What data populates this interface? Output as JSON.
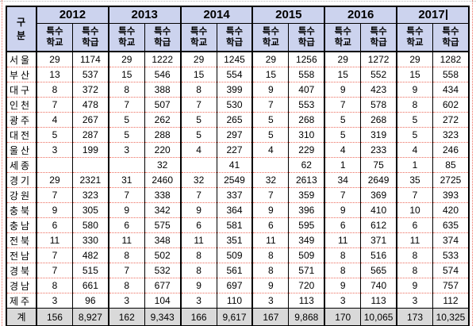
{
  "table": {
    "corner_label": "구분",
    "years": [
      "2012",
      "2013",
      "2014",
      "2015",
      "2016",
      "2017"
    ],
    "col_school": "특수학교",
    "col_class": "특수학급",
    "rows": [
      {
        "region": "서울",
        "values": [
          "29",
          "1174",
          "29",
          "1222",
          "29",
          "1245",
          "29",
          "1256",
          "29",
          "1272",
          "29",
          "1282"
        ]
      },
      {
        "region": "부산",
        "values": [
          "13",
          "537",
          "15",
          "546",
          "15",
          "554",
          "15",
          "558",
          "15",
          "552",
          "15",
          "558"
        ]
      },
      {
        "region": "대구",
        "values": [
          "8",
          "372",
          "8",
          "388",
          "8",
          "399",
          "9",
          "407",
          "9",
          "423",
          "9",
          "434"
        ]
      },
      {
        "region": "인천",
        "values": [
          "7",
          "478",
          "7",
          "507",
          "7",
          "530",
          "7",
          "553",
          "7",
          "578",
          "8",
          "602"
        ]
      },
      {
        "region": "광주",
        "values": [
          "4",
          "267",
          "5",
          "262",
          "5",
          "265",
          "5",
          "268",
          "5",
          "268",
          "5",
          "272"
        ]
      },
      {
        "region": "대전",
        "values": [
          "5",
          "287",
          "5",
          "288",
          "5",
          "297",
          "5",
          "310",
          "5",
          "319",
          "5",
          "323"
        ]
      },
      {
        "region": "울산",
        "values": [
          "3",
          "199",
          "3",
          "220",
          "4",
          "227",
          "4",
          "229",
          "4",
          "233",
          "4",
          "246"
        ]
      },
      {
        "region": "세종",
        "values": [
          "",
          "",
          "",
          "32",
          "",
          "41",
          "",
          "62",
          "1",
          "75",
          "1",
          "85"
        ]
      },
      {
        "region": "경기",
        "values": [
          "29",
          "2321",
          "31",
          "2460",
          "32",
          "2549",
          "32",
          "2613",
          "34",
          "2649",
          "35",
          "2725"
        ]
      },
      {
        "region": "강원",
        "values": [
          "7",
          "323",
          "7",
          "338",
          "7",
          "337",
          "7",
          "359",
          "7",
          "369",
          "7",
          "393"
        ]
      },
      {
        "region": "충북",
        "values": [
          "9",
          "305",
          "9",
          "342",
          "9",
          "364",
          "9",
          "396",
          "9",
          "410",
          "10",
          "420"
        ]
      },
      {
        "region": "충남",
        "values": [
          "6",
          "580",
          "6",
          "575",
          "6",
          "581",
          "6",
          "595",
          "6",
          "612",
          "6",
          "635"
        ]
      },
      {
        "region": "전북",
        "values": [
          "11",
          "330",
          "11",
          "348",
          "11",
          "351",
          "11",
          "349",
          "11",
          "371",
          "11",
          "374"
        ]
      },
      {
        "region": "전남",
        "values": [
          "7",
          "482",
          "8",
          "502",
          "8",
          "509",
          "8",
          "509",
          "8",
          "516",
          "8",
          "533"
        ]
      },
      {
        "region": "경북",
        "values": [
          "7",
          "515",
          "7",
          "532",
          "8",
          "561",
          "8",
          "571",
          "8",
          "565",
          "8",
          "574"
        ]
      },
      {
        "region": "경남",
        "values": [
          "8",
          "661",
          "8",
          "677",
          "9",
          "697",
          "9",
          "720",
          "9",
          "740",
          "9",
          "757"
        ]
      },
      {
        "region": "제주",
        "values": [
          "3",
          "96",
          "3",
          "104",
          "3",
          "110",
          "3",
          "113",
          "3",
          "113",
          "3",
          "112"
        ]
      },
      {
        "region": "계",
        "total": true,
        "values": [
          "156",
          "8,927",
          "162",
          "9,343",
          "166",
          "9,617",
          "167",
          "9,868",
          "170",
          "10,065",
          "173",
          "10,325"
        ]
      }
    ]
  },
  "cursor": {
    "visible": true,
    "location": "after-year-2017"
  },
  "colors": {
    "header_bg": "#ccd3ee",
    "total_bg": "#d9d9d9",
    "grid_red": "#ec6d5e",
    "grid_black": "#000000"
  }
}
